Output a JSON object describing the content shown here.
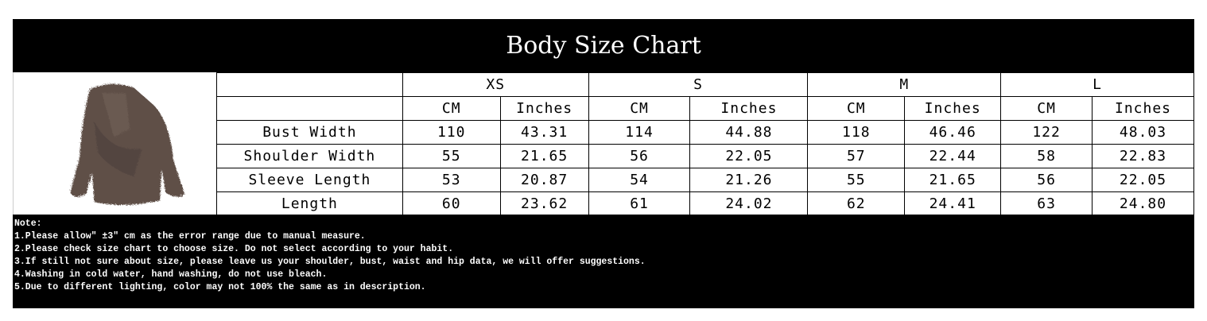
{
  "title": "Body Size Chart",
  "image": {
    "name": "brown faux fur jacket",
    "color": "#5e4f47"
  },
  "sizes": [
    "XS",
    "S",
    "M",
    "L"
  ],
  "units": [
    "CM",
    "Inches"
  ],
  "rows": [
    {
      "label": "Bust Width",
      "values": [
        "110",
        "43.31",
        "114",
        "44.88",
        "118",
        "46.46",
        "122",
        "48.03"
      ]
    },
    {
      "label": "Shoulder Width",
      "values": [
        "55",
        "21.65",
        "56",
        "22.05",
        "57",
        "22.44",
        "58",
        "22.83"
      ]
    },
    {
      "label": "Sleeve Length",
      "values": [
        "53",
        "20.87",
        "54",
        "21.26",
        "55",
        "21.65",
        "56",
        "22.05"
      ]
    },
    {
      "label": "Length",
      "values": [
        "60",
        "23.62",
        "61",
        "24.02",
        "62",
        "24.41",
        "63",
        "24.80"
      ]
    }
  ],
  "notes": {
    "heading": "Note:",
    "items": [
      "1.Please allow\" ±3\" cm as the error range due to manual measure.",
      "2.Please check size chart to choose size. Do not select according to your habit.",
      "3.If still not sure about size, please leave us your shoulder, bust, waist and hip data, we will offer suggestions.",
      "4.Washing in cold water, hand washing, do not use bleach.",
      "5.Due to different lighting, color may not 100% the same as in description."
    ]
  }
}
